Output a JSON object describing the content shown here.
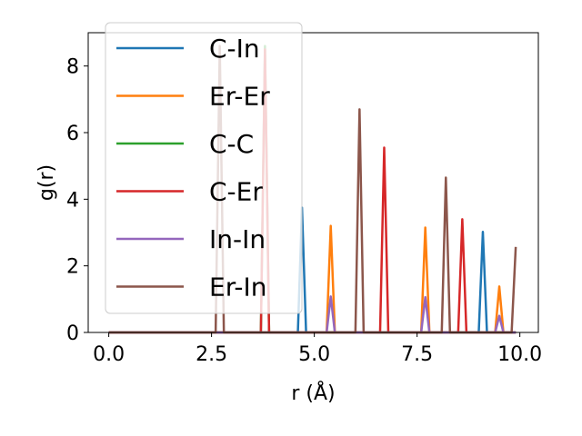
{
  "chart_data": {
    "type": "line",
    "title": "",
    "xlabel": "r (Å)",
    "ylabel": "g(r)",
    "xlim": [
      -0.5,
      10.45
    ],
    "ylim": [
      0,
      9.0
    ],
    "x_ticks": [
      0.0,
      2.5,
      5.0,
      7.5,
      10.0
    ],
    "x_tick_labels": [
      "0.0",
      "2.5",
      "5.0",
      "7.5",
      "10.0"
    ],
    "y_ticks": [
      0,
      2,
      4,
      6,
      8
    ],
    "y_tick_labels": [
      "0",
      "2",
      "4",
      "6",
      "8"
    ],
    "grid": false,
    "legend_position": "top-left",
    "peak_half_width": 0.1,
    "x_max": 9.9,
    "series": [
      {
        "name": "C-In",
        "color": "#1f77b4",
        "peaks": [
          [
            4.7,
            3.75
          ],
          [
            9.1,
            3.02
          ]
        ]
      },
      {
        "name": "Er-Er",
        "color": "#ff7f0e",
        "peaks": [
          [
            5.4,
            3.2
          ],
          [
            7.7,
            3.15
          ],
          [
            9.5,
            1.38
          ]
        ]
      },
      {
        "name": "C-C",
        "color": "#2ca02c",
        "peaks": [
          [
            3.8,
            8.6
          ]
        ]
      },
      {
        "name": "C-Er",
        "color": "#d62728",
        "peaks": [
          [
            3.8,
            8.5
          ],
          [
            6.7,
            5.55
          ],
          [
            8.6,
            3.4
          ]
        ]
      },
      {
        "name": "In-In",
        "color": "#9467bd",
        "peaks": [
          [
            5.4,
            1.08
          ],
          [
            7.7,
            1.06
          ],
          [
            9.5,
            0.5
          ]
        ]
      },
      {
        "name": "Er-In",
        "color": "#8c564b",
        "peaks": [
          [
            2.7,
            8.6
          ],
          [
            6.1,
            6.7
          ],
          [
            8.2,
            4.65
          ],
          [
            9.9,
            2.57
          ]
        ]
      }
    ]
  }
}
